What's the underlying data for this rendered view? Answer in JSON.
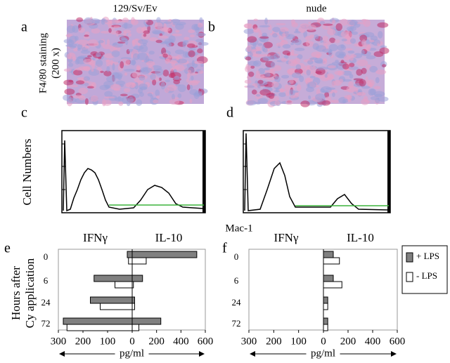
{
  "panel_labels": [
    "a",
    "b",
    "c",
    "d",
    "e",
    "f"
  ],
  "images": {
    "titles": [
      "129/Sv/Ev",
      "nude"
    ],
    "y_label": [
      "F4/80 staining",
      "(200 x)"
    ]
  },
  "histograms": {
    "y_label": "Cell Numbers",
    "x_label": "Mac-1"
  },
  "chart_data": [
    {
      "type": "butterfly-bar",
      "groups": [
        "IFNγ",
        "IL-10"
      ],
      "y_label": [
        "Hours after",
        "Cy application"
      ],
      "x_label": "pg/ml",
      "categories": [
        "0",
        "6",
        "24",
        "72"
      ],
      "xlim": [
        0,
        300
      ],
      "xticks": [
        300,
        200,
        100
      ],
      "x2lim": [
        0,
        600
      ],
      "x2ticks": [
        0,
        200,
        400,
        600
      ],
      "series": [
        {
          "name": "+ LPS",
          "color": "#808080",
          "ifn": [
            20,
            155,
            170,
            280
          ],
          "il10": [
            530,
            85,
            20,
            235
          ]
        },
        {
          "name": "- LPS",
          "color": "#ffffff",
          "ifn": [
            15,
            70,
            130,
            265
          ],
          "il10": [
            115,
            10,
            20,
            55
          ]
        }
      ]
    },
    {
      "type": "butterfly-bar",
      "groups": [
        "IFNγ",
        "IL-10"
      ],
      "x_label": "pg/ml",
      "legend": "right",
      "categories": [
        "0",
        "6",
        "24",
        "72"
      ],
      "xlim": [
        0,
        300
      ],
      "xticks": [
        300,
        200,
        100
      ],
      "x2lim": [
        0,
        600
      ],
      "x2ticks": [
        0,
        200,
        400,
        600
      ],
      "series": [
        {
          "name": "+ LPS",
          "color": "#808080",
          "ifn": [
            0,
            0,
            0,
            0
          ],
          "il10": [
            80,
            80,
            35,
            35
          ]
        },
        {
          "name": "- LPS",
          "color": "#ffffff",
          "ifn": [
            0,
            0,
            0,
            0
          ],
          "il10": [
            130,
            150,
            35,
            35
          ]
        }
      ]
    }
  ]
}
